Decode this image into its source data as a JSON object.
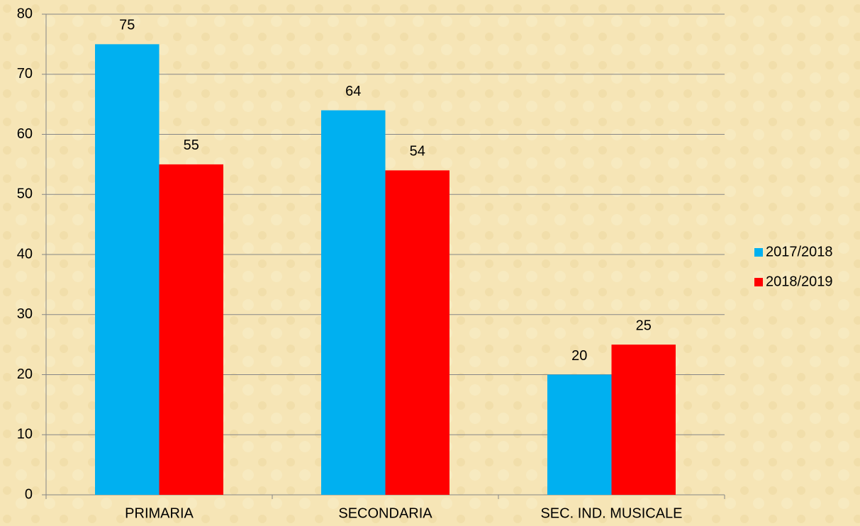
{
  "chart_data": {
    "type": "bar",
    "categories": [
      "PRIMARIA",
      "SECONDARIA",
      "SEC. IND. MUSICALE"
    ],
    "series": [
      {
        "name": "2017/2018",
        "color": "#00b0f0",
        "values": [
          75,
          64,
          20
        ]
      },
      {
        "name": "2018/2019",
        "color": "#ff0000",
        "values": [
          55,
          54,
          25
        ]
      }
    ],
    "ylim": [
      0,
      80
    ],
    "yticks": [
      0,
      10,
      20,
      30,
      40,
      50,
      60,
      70,
      80
    ],
    "grid": true,
    "legend": "right"
  }
}
